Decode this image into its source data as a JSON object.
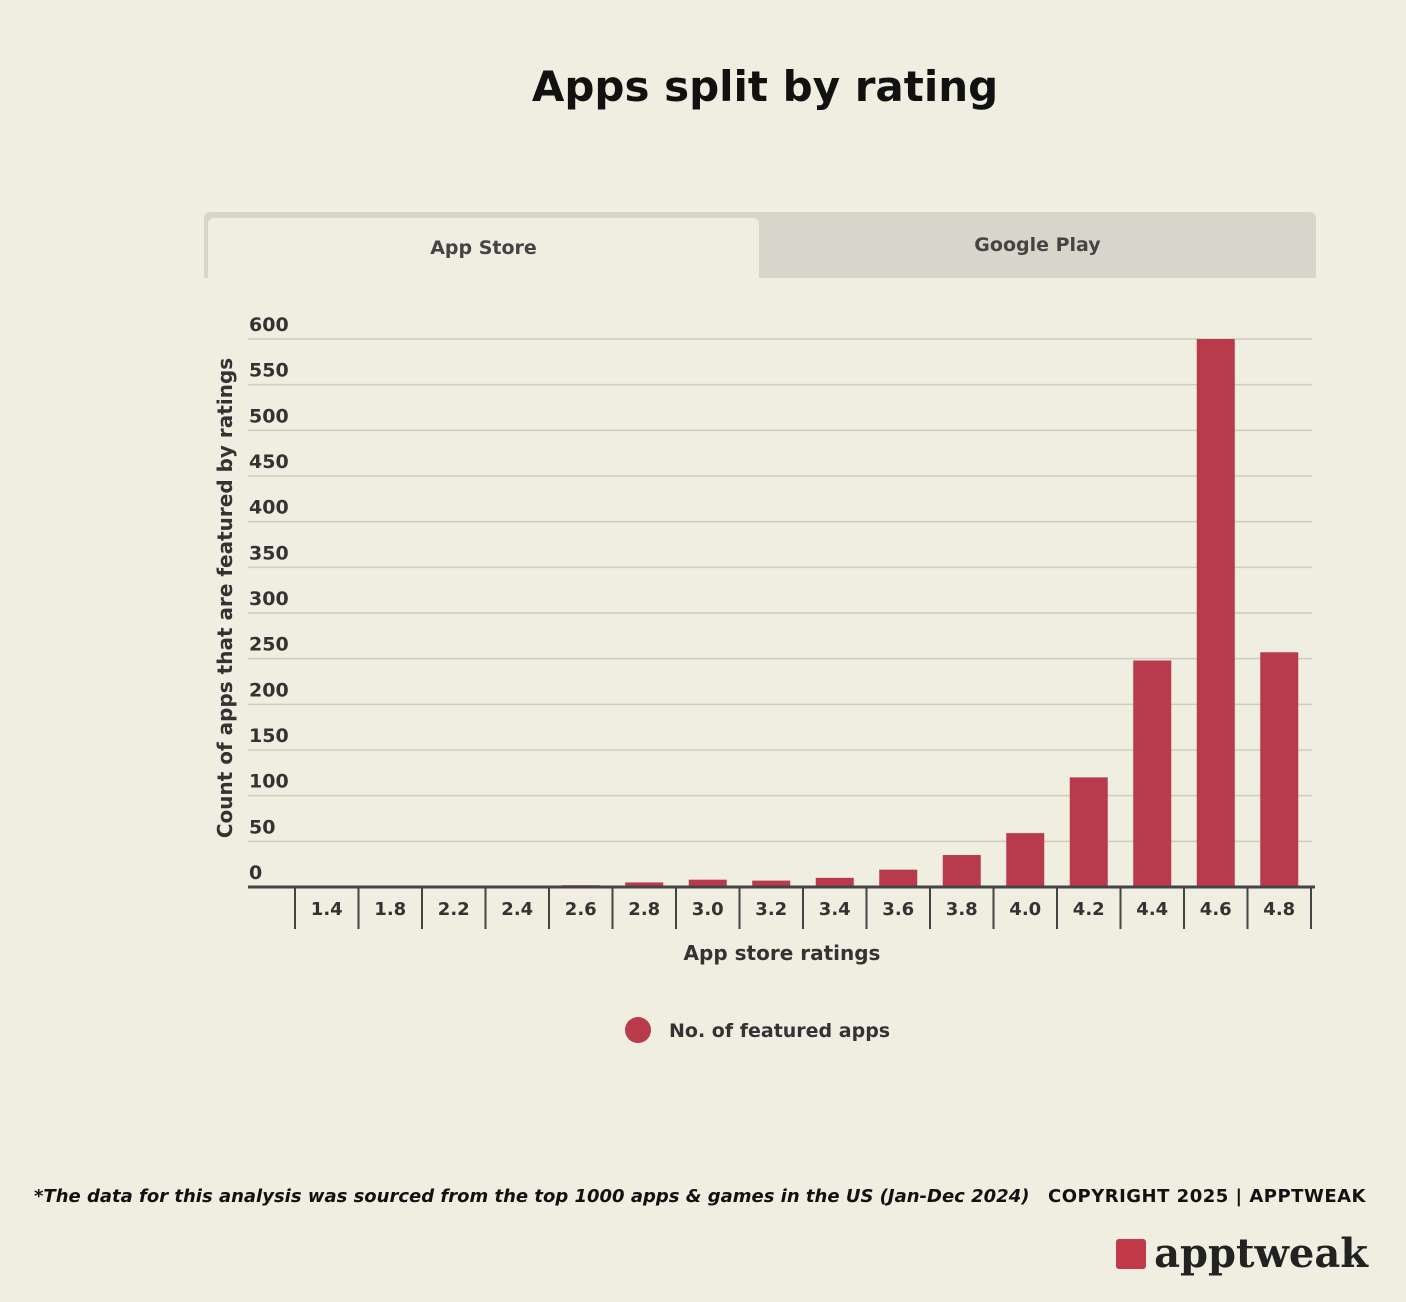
{
  "title": "Apps split by rating",
  "tabs": [
    {
      "label": "App Store",
      "active": true
    },
    {
      "label": "Google Play",
      "active": false
    }
  ],
  "chart_data": {
    "type": "bar",
    "categories": [
      "1.4",
      "1.8",
      "2.2",
      "2.4",
      "2.6",
      "2.8",
      "3.0",
      "3.2",
      "3.4",
      "3.6",
      "3.8",
      "4.0",
      "4.2",
      "4.4",
      "4.6",
      "4.8"
    ],
    "series": [
      {
        "name": "No. of featured apps",
        "values": [
          0,
          0,
          0,
          0,
          2,
          5,
          8,
          7,
          10,
          19,
          35,
          59,
          120,
          248,
          600,
          257
        ],
        "color": "#b83a4b"
      }
    ],
    "xlabel": "App store ratings",
    "ylabel": "Count of apps that are featured by ratings",
    "ylim": [
      0,
      600
    ],
    "yticks": [
      0,
      50,
      100,
      150,
      200,
      250,
      300,
      350,
      400,
      450,
      500,
      550,
      600
    ],
    "grid": true,
    "legend": "bottom-center"
  },
  "footer": {
    "note": "*The data for this analysis was sourced from the top 1000 apps & games in the US (Jan-Dec 2024)",
    "copyright": "COPYRIGHT 2025 | APPTWEAK",
    "logo": "apptweak"
  }
}
